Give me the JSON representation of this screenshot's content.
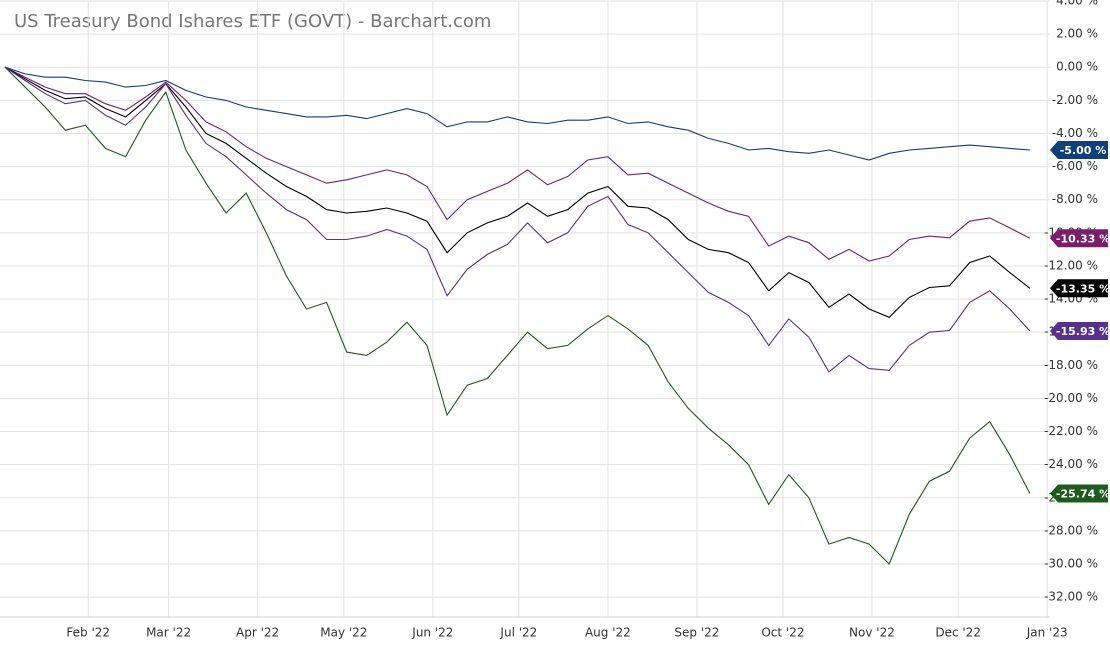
{
  "chart_data": {
    "type": "line",
    "title": "US Treasury Bond Ishares ETF (GOVT) - Barchart.com",
    "xlim": [
      -0.25,
      52
    ],
    "xticks": [
      {
        "value": 4.14,
        "label": "Feb '22"
      },
      {
        "value": 8.14,
        "label": "Mar '22"
      },
      {
        "value": 12.57,
        "label": "Apr '22"
      },
      {
        "value": 16.86,
        "label": "May '22"
      },
      {
        "value": 21.29,
        "label": "Jun '22"
      },
      {
        "value": 25.57,
        "label": "Jul '22"
      },
      {
        "value": 30,
        "label": "Aug '22"
      },
      {
        "value": 34.43,
        "label": "Sep '22"
      },
      {
        "value": 38.71,
        "label": "Oct '22"
      },
      {
        "value": 43.14,
        "label": "Nov '22"
      },
      {
        "value": 47.43,
        "label": "Dec '22"
      },
      {
        "value": 51.86,
        "label": "Jan '23"
      }
    ],
    "ylim": [
      -33.2,
      4.0
    ],
    "yticks": [
      {
        "value": -32,
        "label": "-32.00 %"
      },
      {
        "value": -30,
        "label": "-30.00 %"
      },
      {
        "value": -28,
        "label": "-28.00 %"
      },
      {
        "value": -26,
        "label": "-26.00 %"
      },
      {
        "value": -24,
        "label": "-24.00 %"
      },
      {
        "value": -22,
        "label": "-22.00 %"
      },
      {
        "value": -20,
        "label": "-20.00 %"
      },
      {
        "value": -18,
        "label": "-18.00 %"
      },
      {
        "value": -16,
        "label": "-16.00 %"
      },
      {
        "value": -14,
        "label": "-14.00 %"
      },
      {
        "value": -12,
        "label": "-12.00 %"
      },
      {
        "value": -10,
        "label": "-10.00 %"
      },
      {
        "value": -8,
        "label": "-8.00 %"
      },
      {
        "value": -6,
        "label": "-6.00 %"
      },
      {
        "value": -4,
        "label": "-4.00 %"
      },
      {
        "value": -2,
        "label": "-2.00 %"
      },
      {
        "value": 0,
        "label": "0.00 %"
      },
      {
        "value": 2,
        "label": "2.00 %"
      },
      {
        "value": 4,
        "label": "4.00 %"
      }
    ],
    "grid": true,
    "series": [
      {
        "color": "#0f3f7a",
        "end_label": "-5.00 %",
        "values": [
          0,
          -0.4,
          -0.6,
          -0.6,
          -0.8,
          -0.9,
          -1.2,
          -1.1,
          -0.8,
          -1.4,
          -1.8,
          -2.0,
          -2.4,
          -2.6,
          -2.8,
          -3.0,
          -3.0,
          -2.9,
          -3.1,
          -2.8,
          -2.5,
          -2.8,
          -3.6,
          -3.3,
          -3.3,
          -3.0,
          -3.3,
          -3.4,
          -3.2,
          -3.2,
          -3.0,
          -3.4,
          -3.3,
          -3.6,
          -3.8,
          -4.3,
          -4.6,
          -5.0,
          -4.9,
          -5.1,
          -5.2,
          -5.0,
          -5.3,
          -5.6,
          -5.2,
          -5.0,
          -4.9,
          -4.8,
          -4.7,
          -4.8,
          -4.9,
          -5.0
        ]
      },
      {
        "color": "#7a1e6c",
        "end_label": "-10.33 %",
        "values": [
          0,
          -0.6,
          -1.2,
          -1.6,
          -1.6,
          -2.2,
          -2.6,
          -1.8,
          -0.9,
          -2.0,
          -3.3,
          -3.9,
          -4.8,
          -5.5,
          -6.0,
          -6.5,
          -7.0,
          -6.8,
          -6.5,
          -6.2,
          -6.5,
          -7.2,
          -9.2,
          -8.0,
          -7.5,
          -7.0,
          -6.2,
          -7.1,
          -6.6,
          -5.6,
          -5.4,
          -6.5,
          -6.4,
          -7.0,
          -7.6,
          -8.2,
          -8.7,
          -9.0,
          -10.8,
          -10.2,
          -10.6,
          -11.6,
          -11.0,
          -11.7,
          -11.4,
          -10.4,
          -10.2,
          -10.3,
          -9.3,
          -9.1,
          -9.7,
          -10.33
        ]
      },
      {
        "color": "#000000",
        "end_label": "-13.35 %",
        "values": [
          0,
          -0.7,
          -1.4,
          -1.9,
          -1.8,
          -2.5,
          -3.0,
          -2.0,
          -1.0,
          -2.4,
          -4.0,
          -4.6,
          -5.5,
          -6.4,
          -7.2,
          -7.8,
          -8.6,
          -8.8,
          -8.7,
          -8.5,
          -8.8,
          -9.3,
          -11.2,
          -10.0,
          -9.4,
          -9.0,
          -8.2,
          -9.0,
          -8.6,
          -7.6,
          -7.2,
          -8.4,
          -8.5,
          -9.2,
          -10.4,
          -11.0,
          -11.2,
          -11.8,
          -13.5,
          -12.4,
          -13.0,
          -14.5,
          -13.7,
          -14.6,
          -15.1,
          -13.9,
          -13.3,
          -13.2,
          -11.8,
          -11.4,
          -12.4,
          -13.35
        ]
      },
      {
        "color": "#58318c",
        "end_label": "-15.93 %",
        "values": [
          0,
          -0.8,
          -1.6,
          -2.2,
          -2.0,
          -2.9,
          -3.5,
          -2.4,
          -1.0,
          -2.9,
          -4.6,
          -5.4,
          -6.5,
          -7.6,
          -8.6,
          -9.2,
          -10.4,
          -10.4,
          -10.2,
          -9.8,
          -10.2,
          -11.0,
          -13.8,
          -12.2,
          -11.3,
          -10.7,
          -9.4,
          -10.6,
          -10.0,
          -8.4,
          -7.8,
          -9.5,
          -10.0,
          -11.2,
          -12.4,
          -13.6,
          -14.2,
          -15.0,
          -16.8,
          -15.2,
          -16.3,
          -18.4,
          -17.4,
          -18.2,
          -18.3,
          -16.8,
          -16.0,
          -15.9,
          -14.2,
          -13.5,
          -14.6,
          -15.93
        ]
      },
      {
        "color": "#1d5a1d",
        "end_label": "-25.74 %",
        "values": [
          0,
          -1.2,
          -2.4,
          -3.8,
          -3.5,
          -4.9,
          -5.4,
          -3.2,
          -1.5,
          -5.0,
          -7.0,
          -8.8,
          -7.6,
          -10.0,
          -12.6,
          -14.6,
          -14.2,
          -17.2,
          -17.4,
          -16.6,
          -15.4,
          -16.8,
          -21.0,
          -19.2,
          -18.8,
          -17.4,
          -16.0,
          -17.0,
          -16.8,
          -15.8,
          -15.0,
          -15.8,
          -16.8,
          -19.0,
          -20.6,
          -21.8,
          -22.8,
          -24.0,
          -26.4,
          -24.6,
          -26.0,
          -28.8,
          -28.4,
          -28.8,
          -30.0,
          -27.0,
          -25.0,
          -24.4,
          -22.4,
          -21.4,
          -23.4,
          -25.74
        ]
      }
    ]
  }
}
